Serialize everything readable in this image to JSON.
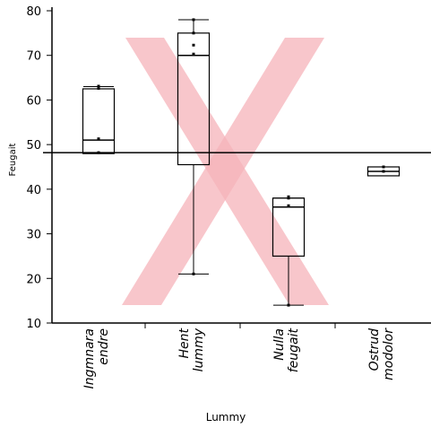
{
  "chart_data": {
    "type": "box",
    "xlabel": "Lummy",
    "ylabel": "Feugait",
    "ylim": [
      10,
      80
    ],
    "yticks": [
      10,
      20,
      30,
      40,
      50,
      60,
      70,
      80
    ],
    "reference_line": 48.2,
    "watermark": "X",
    "watermark_color": "#f6b3b9",
    "categories": [
      {
        "label_lines": [
          "Ingmnara",
          "endre"
        ],
        "whisker_low": 48,
        "q1": 48,
        "median": 51,
        "q3": 62.5,
        "whisker_high": 63,
        "points": [
          48.2,
          51.3,
          62.6,
          63.1
        ]
      },
      {
        "label_lines": [
          "Hent",
          "lummy"
        ],
        "whisker_low": 21,
        "q1": 45.5,
        "median": 70,
        "q3": 75,
        "whisker_high": 78,
        "points": [
          21,
          70.3,
          72.3,
          75,
          78
        ]
      },
      {
        "label_lines": [
          "Nulla",
          "feugait"
        ],
        "whisker_low": 14,
        "q1": 25,
        "median": 36,
        "q3": 38,
        "whisker_high": 38,
        "points": [
          14,
          36.3,
          38,
          38.3
        ]
      },
      {
        "label_lines": [
          "Ostrud",
          "modolor"
        ],
        "whisker_low": 43,
        "q1": 43,
        "median": 44,
        "q3": 45,
        "whisker_high": 45,
        "points": [
          44,
          45
        ]
      }
    ]
  }
}
